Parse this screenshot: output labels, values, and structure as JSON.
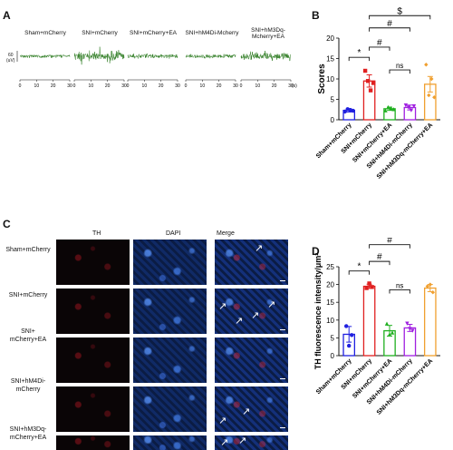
{
  "panels": {
    "A": "A",
    "B": "B",
    "C": "C",
    "D": "D"
  },
  "emg": {
    "y_tick_value": "60",
    "y_unit": "(uV)",
    "x_unit_suffix": "(s)",
    "x_ticks": [
      "0",
      "10",
      "20",
      "30"
    ],
    "traces": [
      {
        "label": "Sham+mCherry",
        "activity": 0.15
      },
      {
        "label": "SNI+mCherry",
        "activity": 1.0
      },
      {
        "label": "SNI+mCherry+EA",
        "activity": 0.35
      },
      {
        "label": "SNI+hM4Di-Mcherry",
        "activity": 0.3
      },
      {
        "label_line1": "SNI+hM3Dq-",
        "label_line2": "Mcherry+EA",
        "activity": 0.7
      }
    ],
    "trace_color": "#2a7a1e"
  },
  "if_panel": {
    "col_titles": [
      {
        "text": "TH",
        "color": "#d22"
      },
      {
        "text": "DAPI",
        "color": "#2a6fd6"
      },
      {
        "text": "Merge",
        "color": "#111"
      }
    ],
    "rows": [
      {
        "line1": "Sham+mCherry",
        "line2": ""
      },
      {
        "line1": "SNI+mCherry",
        "line2": ""
      },
      {
        "line1": "SNI+",
        "line2": "mCherry+EA"
      },
      {
        "line1": "SNI+hM4Di-",
        "line2": "mCherry"
      },
      {
        "line1": "SNI+hM3Dq-",
        "line2": "mCherry+EA"
      }
    ],
    "arrow_glyph": "↗"
  },
  "chart_data": [
    {
      "type": "bar",
      "panel": "B",
      "ylabel": "Scores",
      "ylim": [
        0,
        20
      ],
      "yticks": [
        0,
        5,
        10,
        15,
        20
      ],
      "categories": [
        "Sham+mCherry",
        "SNI+mCherry",
        "SNI+mCherry+EA",
        "SNI+hM4Di-mCherry",
        "SNI+hM3Dq-mCherry+EA"
      ],
      "values": [
        2.3,
        9.5,
        2.7,
        3.0,
        8.7
      ],
      "errors": [
        0.4,
        1.5,
        0.4,
        0.6,
        1.9
      ],
      "points": [
        [
          2.0,
          2.6,
          2.4,
          2.2
        ],
        [
          12.0,
          9.5,
          7.2,
          9.0
        ],
        [
          2.3,
          3.1,
          2.8,
          2.6
        ],
        [
          3.5,
          3.0,
          2.3,
          3.3
        ],
        [
          13.5,
          6.0,
          10.0,
          5.5
        ]
      ],
      "colors": [
        "#2020e0",
        "#e02020",
        "#20b020",
        "#a020e0",
        "#f0a030"
      ],
      "markers": [
        "circle",
        "square",
        "triangle",
        "triangle-down",
        "diamond"
      ],
      "annotations": [
        {
          "from": 0,
          "to": 1,
          "text": "*"
        },
        {
          "from": 1,
          "to": 2,
          "text": "#"
        },
        {
          "from": 1,
          "to": 3,
          "text": "#"
        },
        {
          "from": 2,
          "to": 3,
          "text": "ns"
        },
        {
          "from": 1,
          "to": 4,
          "text": "$"
        }
      ]
    },
    {
      "type": "bar",
      "panel": "D",
      "ylabel": "TH fluorescence intensity/μm²",
      "ylim": [
        0,
        25
      ],
      "yticks": [
        0,
        5,
        10,
        15,
        20,
        25
      ],
      "categories": [
        "Sham+mCherry",
        "SNI+mCherry",
        "SNI+mCherry+EA",
        "SNI+hM4Di-mCherry",
        "SNI+hM3Dq-mCherry+EA"
      ],
      "values": [
        6.0,
        19.5,
        7.0,
        7.8,
        19.0
      ],
      "errors": [
        2.2,
        0.6,
        1.5,
        1.0,
        1.0
      ],
      "points": [
        [
          8.3,
          2.8,
          5.8
        ],
        [
          19.0,
          20.3,
          19.3
        ],
        [
          9.0,
          6.0,
          6.5
        ],
        [
          9.0,
          7.5,
          7.0
        ],
        [
          19.5,
          20.0,
          17.8
        ]
      ],
      "colors": [
        "#2020e0",
        "#e02020",
        "#20b020",
        "#a020e0",
        "#f0a030"
      ],
      "markers": [
        "circle",
        "square",
        "triangle",
        "triangle-down",
        "diamond"
      ],
      "annotations": [
        {
          "from": 0,
          "to": 1,
          "text": "*"
        },
        {
          "from": 1,
          "to": 2,
          "text": "#"
        },
        {
          "from": 1,
          "to": 3,
          "text": "#"
        },
        {
          "from": 2,
          "to": 3,
          "text": "ns"
        },
        {
          "from": 1,
          "to": 4,
          "text": "$"
        }
      ]
    }
  ]
}
